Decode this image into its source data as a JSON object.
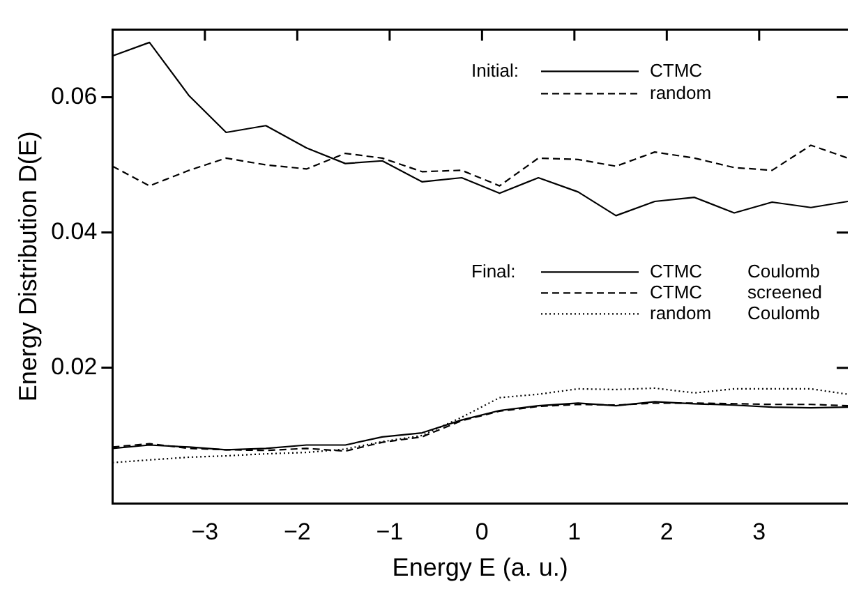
{
  "chart_data": {
    "type": "line",
    "xlabel": "Energy E (a. u.)",
    "ylabel": "Energy Distribution D(E)",
    "x": [
      -4.0,
      -3.6,
      -3.17,
      -2.77,
      -2.34,
      -1.9,
      -1.48,
      -1.08,
      -0.65,
      -0.22,
      0.19,
      0.61,
      1.04,
      1.45,
      1.87,
      2.3,
      2.73,
      3.14,
      3.56,
      3.96
    ],
    "series": [
      {
        "name": "CTMC",
        "color": "#000000",
        "line_style": "solid",
        "values": [
          0.0661,
          0.0681,
          0.0602,
          0.0548,
          0.0558,
          0.0525,
          0.0502,
          0.0506,
          0.0475,
          0.0481,
          0.0458,
          0.0481,
          0.046,
          0.0425,
          0.0446,
          0.0452,
          0.0429,
          0.0445,
          0.0437,
          0.0446
        ]
      },
      {
        "name": "random",
        "color": "#000000",
        "line_style": "dashed",
        "values": [
          0.0498,
          0.0469,
          0.0492,
          0.051,
          0.05,
          0.0494,
          0.0517,
          0.051,
          0.049,
          0.0492,
          0.0469,
          0.051,
          0.0508,
          0.0498,
          0.0519,
          0.051,
          0.0496,
          0.0492,
          0.0529,
          0.051
        ]
      },
      {
        "name": "CTMC Coulomb",
        "color": "#000000",
        "line_style": "solid",
        "values": [
          0.0081,
          0.0086,
          0.0083,
          0.0079,
          0.0081,
          0.0086,
          0.0086,
          0.0098,
          0.0104,
          0.0123,
          0.0137,
          0.0144,
          0.0148,
          0.0144,
          0.015,
          0.0147,
          0.0145,
          0.0142,
          0.0141,
          0.0142
        ]
      },
      {
        "name": "CTMC screened",
        "color": "#000000",
        "line_style": "dashed",
        "values": [
          0.0083,
          0.0088,
          0.0081,
          0.0079,
          0.0078,
          0.0081,
          0.0077,
          0.009,
          0.0098,
          0.0122,
          0.0136,
          0.0143,
          0.0146,
          0.0145,
          0.0148,
          0.0148,
          0.0147,
          0.0146,
          0.0146,
          0.0144
        ]
      },
      {
        "name": "random Coulomb",
        "color": "#000000",
        "line_style": "dotted",
        "values": [
          0.006,
          0.0064,
          0.0068,
          0.007,
          0.0073,
          0.0075,
          0.008,
          0.0091,
          0.01,
          0.0127,
          0.0156,
          0.0161,
          0.0169,
          0.0168,
          0.017,
          0.0163,
          0.0169,
          0.0169,
          0.0169,
          0.0161
        ]
      }
    ],
    "annotations": [
      "Initial:",
      "Final:"
    ],
    "xlim": [
      -4,
      3.96
    ],
    "xticks": [
      {
        "value": -3,
        "label": "−3"
      },
      {
        "value": -2,
        "label": "−2"
      },
      {
        "value": -1,
        "label": "−1"
      },
      0,
      1,
      2,
      3
    ],
    "ylim": [
      0,
      0.07
    ],
    "yticks": [
      0.02,
      0.04,
      0.06
    ],
    "legend": "top right",
    "grid": false
  }
}
